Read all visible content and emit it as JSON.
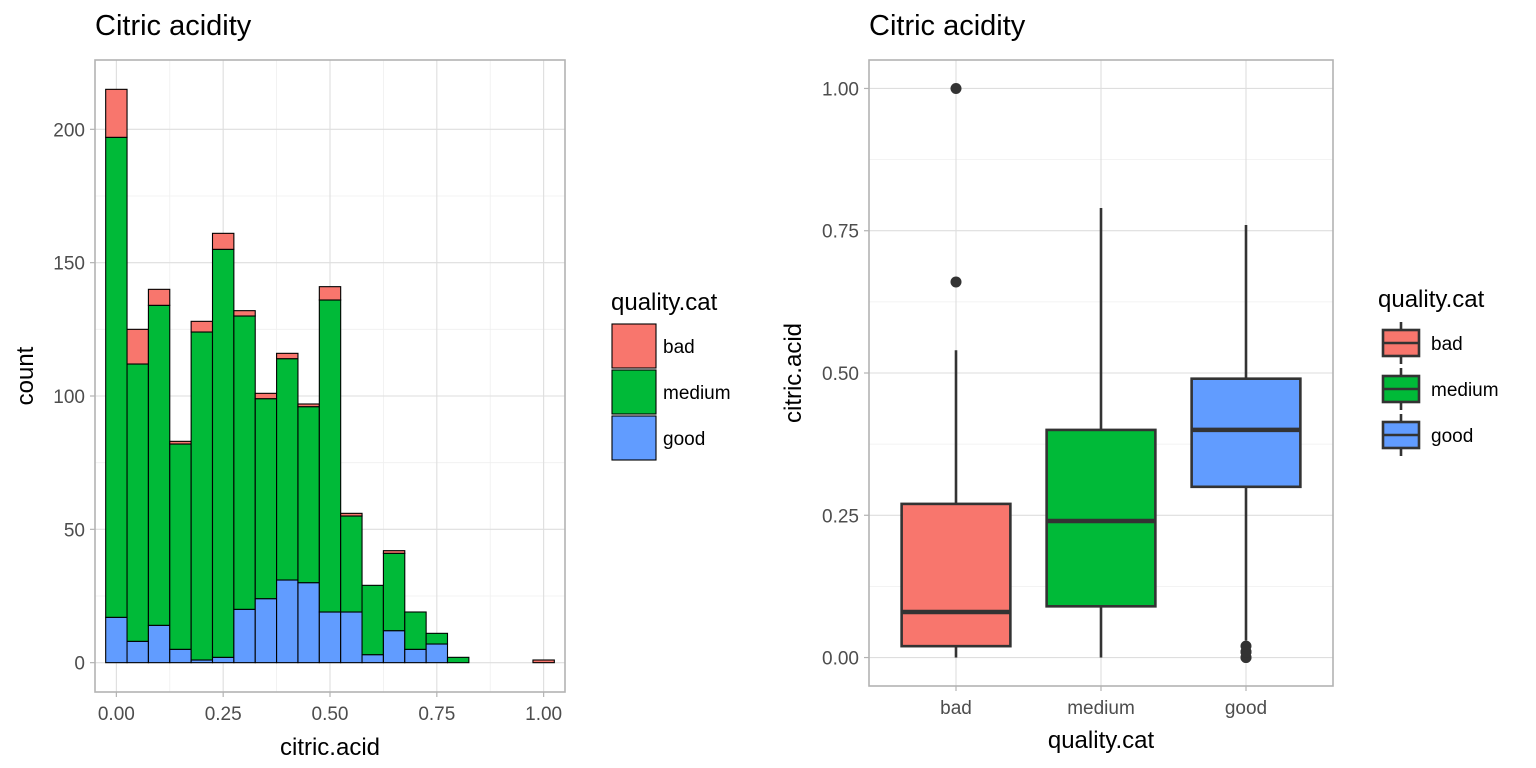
{
  "chart_data": [
    {
      "type": "bar",
      "stacked": true,
      "title": "Citric acidity",
      "xlabel": "citric.acid",
      "ylabel": "count",
      "xlim": [
        -0.05,
        1.05
      ],
      "ylim": [
        -11,
        226
      ],
      "x_ticks": [
        0.0,
        0.25,
        0.5,
        0.75,
        1.0
      ],
      "x_tick_labels": [
        "0.00",
        "0.25",
        "0.50",
        "0.75",
        "1.00"
      ],
      "y_ticks": [
        0,
        50,
        100,
        150,
        200
      ],
      "y_tick_labels": [
        "0",
        "50",
        "100",
        "150",
        "200"
      ],
      "bin_width": 0.05,
      "x": [
        0.0,
        0.05,
        0.1,
        0.15,
        0.2,
        0.25,
        0.3,
        0.35,
        0.4,
        0.45,
        0.5,
        0.55,
        0.6,
        0.65,
        0.7,
        0.75,
        0.8,
        0.85,
        0.9,
        0.95,
        1.0
      ],
      "series": [
        {
          "name": "good",
          "color": "#619cff",
          "values": [
            17,
            8,
            14,
            5,
            1,
            2,
            20,
            24,
            31,
            30,
            19,
            19,
            3,
            12,
            5,
            7,
            0,
            0,
            0,
            0,
            0
          ]
        },
        {
          "name": "medium",
          "color": "#00ba38",
          "values": [
            180,
            104,
            120,
            77,
            123,
            153,
            110,
            75,
            83,
            66,
            117,
            36,
            26,
            29,
            14,
            4,
            2,
            0,
            0,
            0,
            0
          ]
        },
        {
          "name": "bad",
          "color": "#f8766d",
          "values": [
            18,
            13,
            6,
            1,
            4,
            6,
            2,
            2,
            2,
            1,
            5,
            1,
            0,
            1,
            0,
            0,
            0,
            0,
            0,
            0,
            1
          ]
        }
      ],
      "legend": {
        "title": "quality.cat",
        "position": "right",
        "entries": [
          {
            "label": "bad",
            "color": "#f8766d"
          },
          {
            "label": "medium",
            "color": "#00ba38"
          },
          {
            "label": "good",
            "color": "#619cff"
          }
        ]
      },
      "grid": true
    },
    {
      "type": "box",
      "title": "Citric acidity",
      "xlabel": "quality.cat",
      "ylabel": "citric.acid",
      "ylim": [
        -0.05,
        1.05
      ],
      "y_ticks": [
        0.0,
        0.25,
        0.5,
        0.75,
        1.0
      ],
      "y_tick_labels": [
        "0.00",
        "0.25",
        "0.50",
        "0.75",
        "1.00"
      ],
      "categories": [
        "bad",
        "medium",
        "good"
      ],
      "boxes": [
        {
          "name": "bad",
          "color": "#f8766d",
          "min": 0.0,
          "q1": 0.02,
          "median": 0.08,
          "q3": 0.27,
          "max": 0.54,
          "outliers": [
            0.66,
            1.0
          ]
        },
        {
          "name": "medium",
          "color": "#00ba38",
          "min": 0.0,
          "q1": 0.09,
          "median": 0.24,
          "q3": 0.4,
          "max": 0.79,
          "outliers": []
        },
        {
          "name": "good",
          "color": "#619cff",
          "min": 0.03,
          "q1": 0.3,
          "median": 0.4,
          "q3": 0.49,
          "max": 0.76,
          "outliers": [
            0.0,
            0.0,
            0.01,
            0.01,
            0.02
          ]
        }
      ],
      "legend": {
        "title": "quality.cat",
        "position": "right",
        "entries": [
          {
            "label": "bad",
            "color": "#f8766d"
          },
          {
            "label": "medium",
            "color": "#00ba38"
          },
          {
            "label": "good",
            "color": "#619cff"
          }
        ]
      },
      "grid": true
    }
  ]
}
